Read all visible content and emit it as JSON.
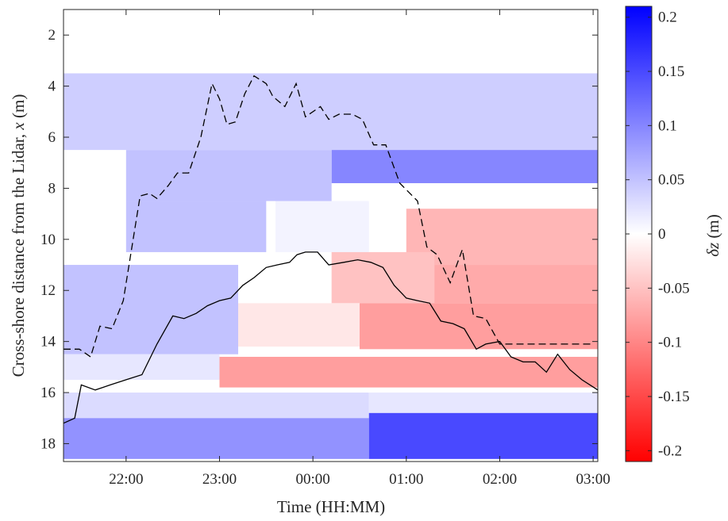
{
  "chart_data": {
    "type": "heatmap",
    "title": "",
    "xlabel": "Time (HH:MM)",
    "ylabel_text": "Cross-shore distance from the Lidar, ",
    "ylabel_var": "x",
    "ylabel_unit": " (m)",
    "colorbar_label_delta": "δ",
    "colorbar_label_var": "z",
    "colorbar_label_unit": " (m)",
    "colormap": {
      "low": "#ff0000",
      "mid": "#ffffff",
      "high": "#0000ff"
    },
    "clim": [
      -0.21,
      0.21
    ],
    "xlim_hours": [
      21.33,
      27.05
    ],
    "ylim": [
      1,
      18.7
    ],
    "y_reversed": true,
    "x_ticks": [
      {
        "label": "22:00",
        "hours": 22
      },
      {
        "label": "23:00",
        "hours": 23
      },
      {
        "label": "00:00",
        "hours": 24
      },
      {
        "label": "01:00",
        "hours": 25
      },
      {
        "label": "02:00",
        "hours": 26
      },
      {
        "label": "03:00",
        "hours": 27
      }
    ],
    "y_ticks": [
      2,
      4,
      6,
      8,
      10,
      12,
      14,
      16,
      18
    ],
    "colorbar_ticks": [
      {
        "value": 0.2,
        "label": "0.2"
      },
      {
        "value": 0.15,
        "label": "0.15"
      },
      {
        "value": 0.1,
        "label": "0.1"
      },
      {
        "value": 0.05,
        "label": "0.05"
      },
      {
        "value": 0,
        "label": "0"
      },
      {
        "value": -0.05,
        "label": "-0.05"
      },
      {
        "value": -0.1,
        "label": "-0.1"
      },
      {
        "value": -0.15,
        "label": "-0.15"
      },
      {
        "value": -0.2,
        "label": "-0.2"
      }
    ],
    "grid": false,
    "heatmap_regions": [
      {
        "x0": 21.33,
        "x1": 27.05,
        "y0": 3.5,
        "y1": 6.5,
        "value": 0.04
      },
      {
        "x0": 24.2,
        "x1": 27.05,
        "y0": 6.5,
        "y1": 7.8,
        "value": 0.1
      },
      {
        "x0": 22.0,
        "x1": 24.2,
        "y0": 6.5,
        "y1": 8.5,
        "value": 0.05
      },
      {
        "x0": 22.0,
        "x1": 23.5,
        "y0": 8.5,
        "y1": 10.5,
        "value": 0.05
      },
      {
        "x0": 23.6,
        "x1": 24.6,
        "y0": 8.5,
        "y1": 10.5,
        "value": 0.01
      },
      {
        "x0": 25.0,
        "x1": 27.05,
        "y0": 8.8,
        "y1": 11.0,
        "value": -0.06
      },
      {
        "x0": 24.2,
        "x1": 25.3,
        "y0": 10.5,
        "y1": 12.5,
        "value": -0.05
      },
      {
        "x0": 25.3,
        "x1": 27.05,
        "y0": 11.0,
        "y1": 12.5,
        "value": -0.07
      },
      {
        "x0": 21.33,
        "x1": 23.2,
        "y0": 11.0,
        "y1": 14.5,
        "value": 0.05
      },
      {
        "x0": 23.2,
        "x1": 24.5,
        "y0": 12.5,
        "y1": 14.2,
        "value": -0.02
      },
      {
        "x0": 24.5,
        "x1": 27.05,
        "y0": 12.5,
        "y1": 14.3,
        "value": -0.08
      },
      {
        "x0": 21.33,
        "x1": 23.0,
        "y0": 14.5,
        "y1": 15.5,
        "value": 0.02
      },
      {
        "x0": 23.0,
        "x1": 27.05,
        "y0": 14.6,
        "y1": 15.8,
        "value": -0.08
      },
      {
        "x0": 21.33,
        "x1": 24.6,
        "y0": 16.0,
        "y1": 17.0,
        "value": 0.03
      },
      {
        "x0": 24.6,
        "x1": 27.05,
        "y0": 16.0,
        "y1": 16.8,
        "value": 0.02
      },
      {
        "x0": 21.33,
        "x1": 24.6,
        "y0": 17.0,
        "y1": 18.6,
        "value": 0.09
      },
      {
        "x0": 24.6,
        "x1": 27.05,
        "y0": 16.8,
        "y1": 18.6,
        "value": 0.15
      }
    ],
    "series": [
      {
        "style": "dashed",
        "x_hours": [
          21.33,
          21.5,
          21.62,
          21.72,
          21.85,
          21.97,
          22.15,
          22.25,
          22.33,
          22.45,
          22.55,
          22.67,
          22.8,
          22.92,
          23.0,
          23.08,
          23.17,
          23.27,
          23.37,
          23.5,
          23.57,
          23.7,
          23.82,
          23.92,
          24.08,
          24.17,
          24.28,
          24.42,
          24.53,
          24.65,
          24.78,
          24.93,
          25.12,
          25.22,
          25.33,
          25.47,
          25.6,
          25.72,
          25.85,
          26.0,
          26.1,
          26.22,
          26.33,
          26.47,
          26.62,
          26.75,
          26.88,
          27.0
        ],
        "y": [
          14.3,
          14.3,
          14.6,
          13.4,
          13.5,
          12.4,
          8.3,
          8.2,
          8.4,
          7.9,
          7.4,
          7.4,
          6.0,
          3.9,
          4.5,
          5.5,
          5.4,
          4.3,
          3.6,
          3.9,
          4.4,
          4.8,
          3.9,
          5.2,
          4.8,
          5.3,
          5.1,
          5.1,
          5.3,
          6.3,
          6.3,
          7.8,
          8.5,
          10.3,
          10.6,
          11.7,
          10.4,
          13.0,
          13.1,
          14.1,
          14.1,
          14.1,
          14.1,
          14.1,
          14.1,
          14.1,
          14.1,
          14.1
        ]
      },
      {
        "style": "solid",
        "x_hours": [
          21.33,
          21.45,
          21.52,
          21.67,
          21.83,
          22.0,
          22.17,
          22.33,
          22.5,
          22.62,
          22.75,
          22.87,
          23.0,
          23.12,
          23.25,
          23.37,
          23.5,
          23.62,
          23.75,
          23.83,
          23.92,
          24.05,
          24.17,
          24.33,
          24.48,
          24.62,
          24.75,
          24.87,
          25.0,
          25.12,
          25.25,
          25.37,
          25.5,
          25.62,
          25.75,
          25.85,
          26.0,
          26.12,
          26.25,
          26.38,
          26.5,
          26.62,
          26.75,
          26.88,
          27.05
        ],
        "y": [
          17.2,
          17.0,
          15.7,
          15.9,
          15.7,
          15.5,
          15.3,
          14.1,
          13.0,
          13.1,
          12.9,
          12.6,
          12.4,
          12.3,
          11.8,
          11.5,
          11.1,
          11.0,
          10.9,
          10.6,
          10.5,
          10.5,
          11.0,
          10.9,
          10.8,
          10.9,
          11.1,
          11.8,
          12.3,
          12.4,
          12.5,
          13.2,
          13.3,
          13.5,
          14.3,
          14.1,
          14.0,
          14.6,
          14.8,
          14.8,
          15.2,
          14.5,
          15.1,
          15.5,
          15.9
        ]
      }
    ]
  }
}
